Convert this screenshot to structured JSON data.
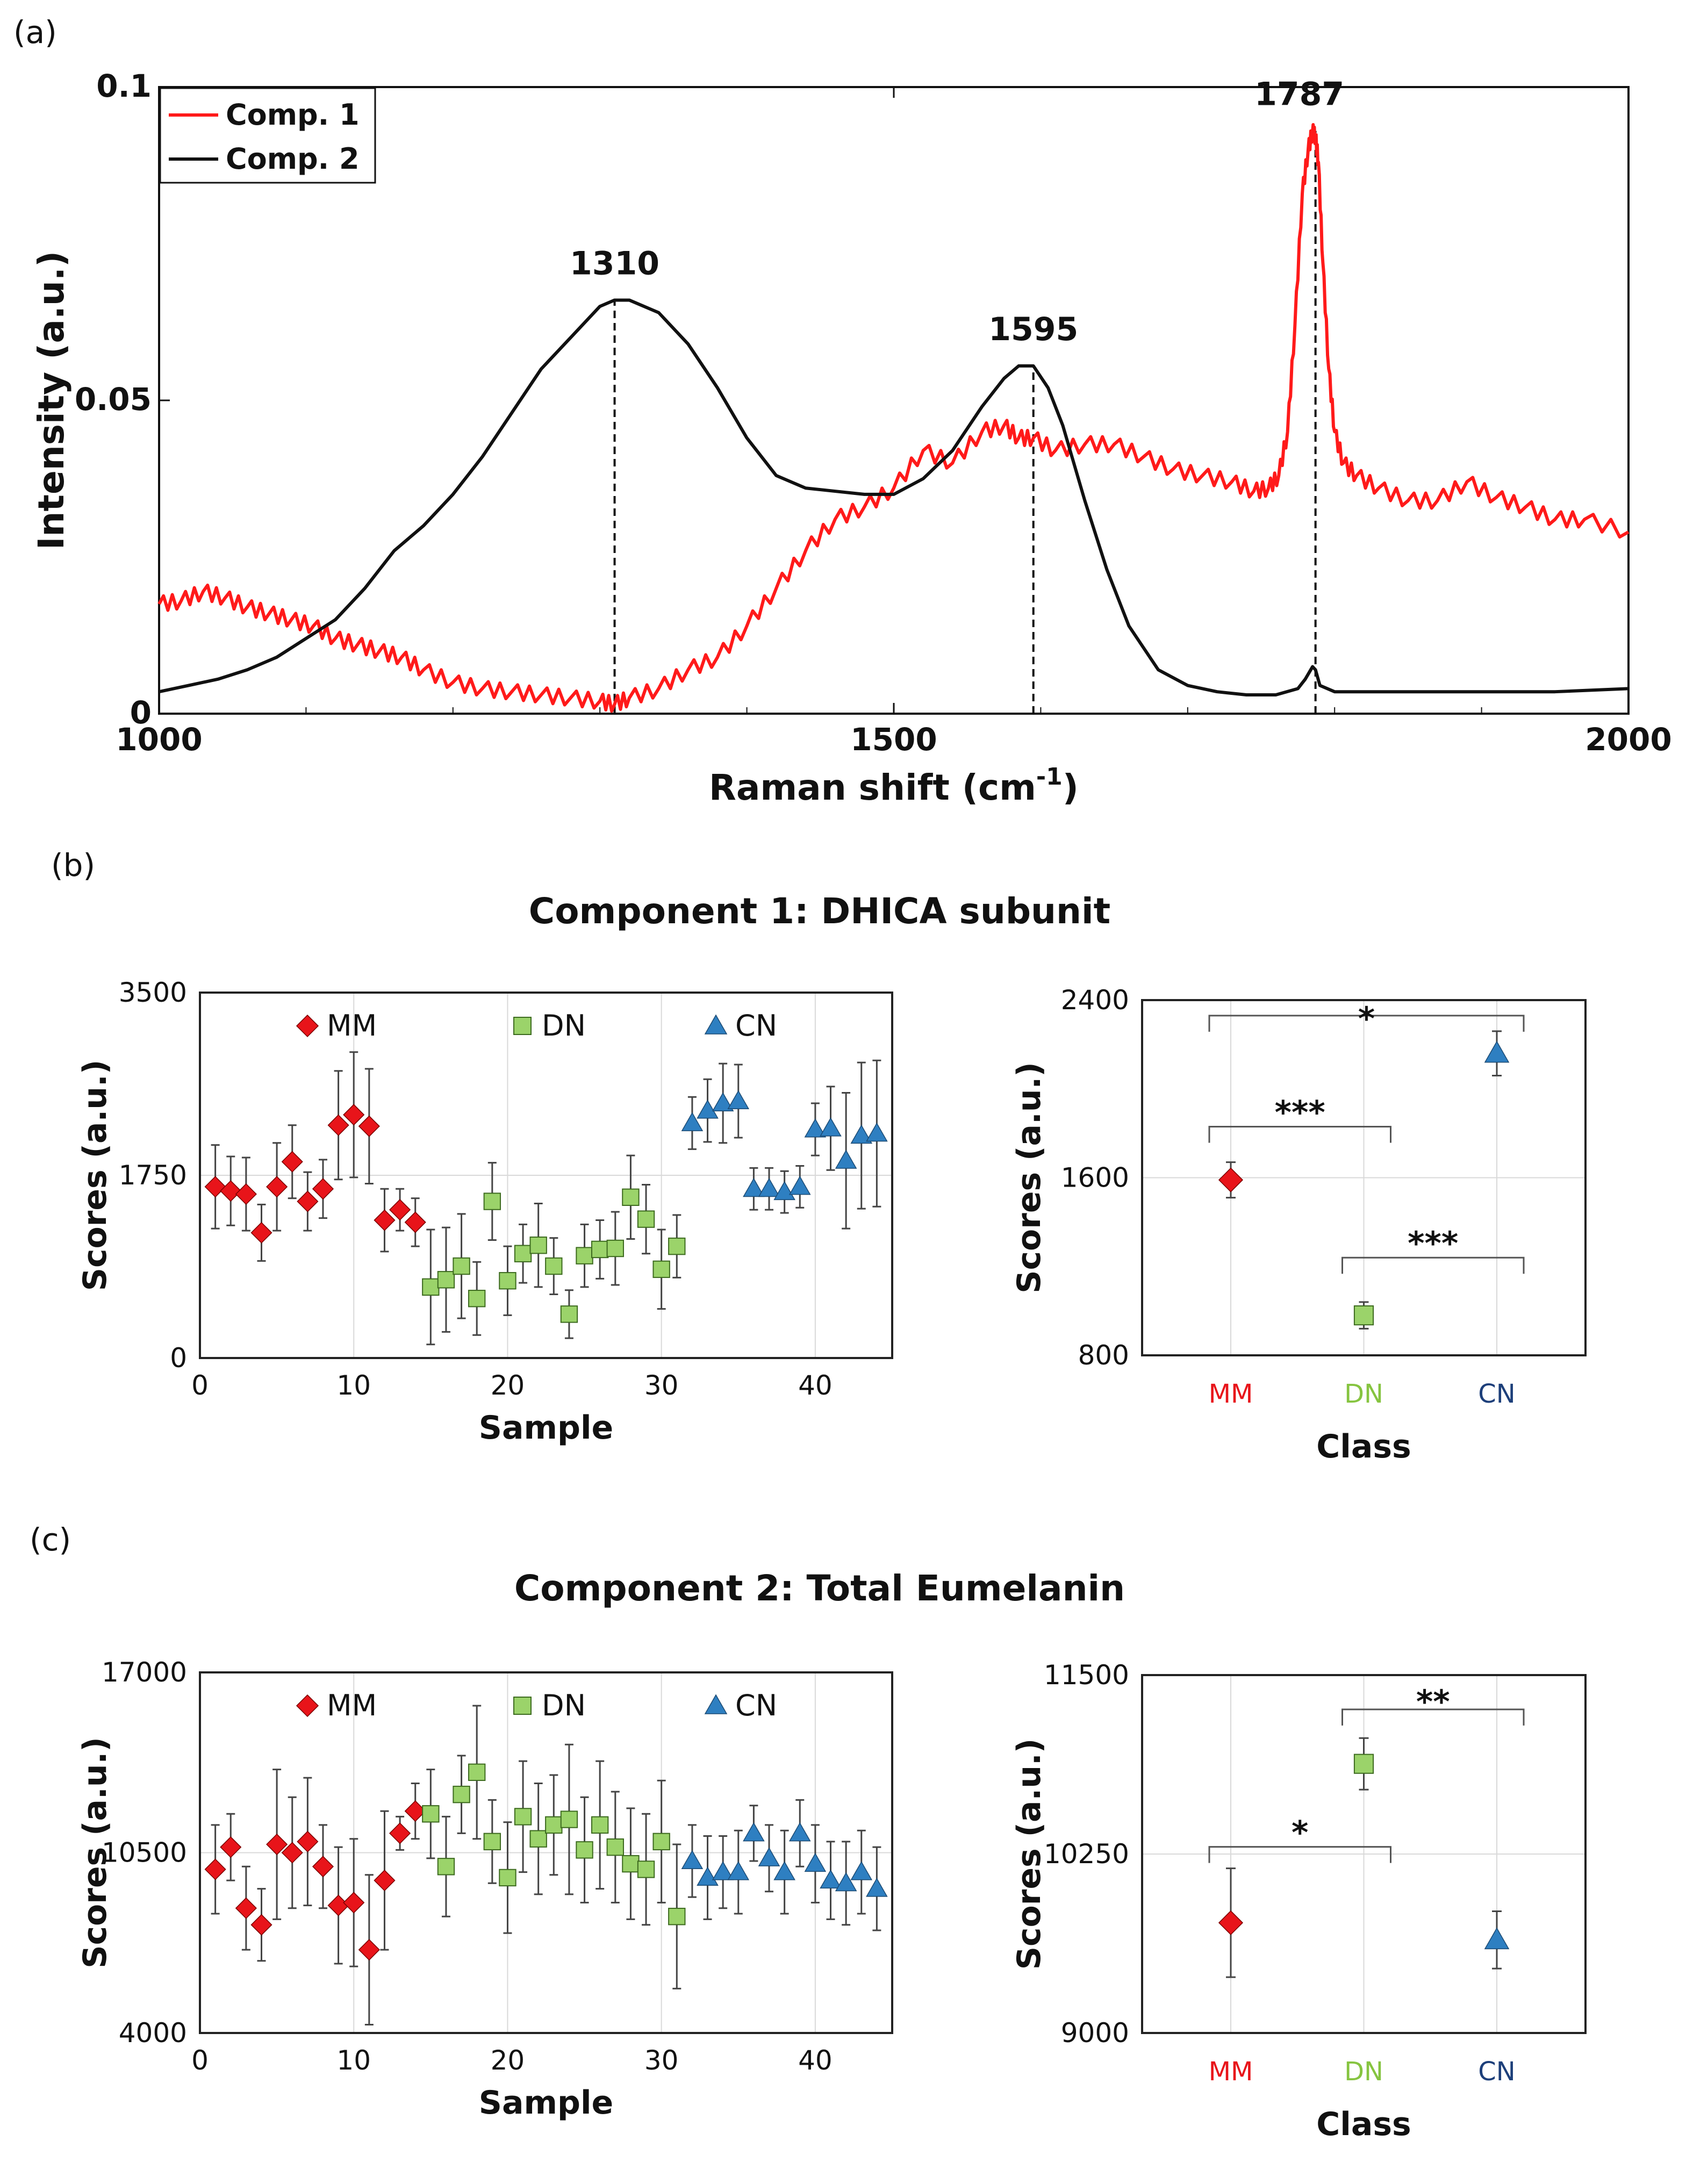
{
  "panel_labels": {
    "a": "(a)",
    "b": "(b)",
    "c": "(c)"
  },
  "section_titles": {
    "b": "Component 1: DHICA subunit",
    "c": "Component 2: Total Eumelanin"
  },
  "colors": {
    "comp1": "#ff1a1a",
    "comp2": "#111111",
    "MM": "#e8141a",
    "DN": "#9bd36a",
    "CN": "#2e7fc1",
    "MM_label": "#e8141a",
    "DN_label": "#86c440",
    "CN_label": "#1d3f7a",
    "grid": "#d9d9d9"
  },
  "chart_data": [
    {
      "id": "a",
      "type": "line",
      "xlabel": "Raman shift (cm",
      "xlabel_sup": "-1",
      "xlabel_end": ")",
      "ylabel": "Intensity (a.u.)",
      "xlim": [
        1000,
        2000
      ],
      "ylim": [
        0,
        0.1
      ],
      "xticks": [
        1000,
        1500,
        2000
      ],
      "xtick_labels": [
        "1000",
        "1500",
        "2000"
      ],
      "yticks": [
        0,
        0.05,
        0.1
      ],
      "ytick_labels": [
        "0",
        "0.05",
        "0.1"
      ],
      "legend": [
        "Comp. 1",
        "Comp. 2"
      ],
      "series": [
        {
          "name": "Comp. 1",
          "color": "#ff1a1a",
          "x": [
            1000,
            1015,
            1030,
            1045,
            1060,
            1075,
            1090,
            1105,
            1120,
            1135,
            1150,
            1165,
            1180,
            1200,
            1220,
            1240,
            1260,
            1280,
            1300,
            1310,
            1320,
            1340,
            1360,
            1380,
            1400,
            1420,
            1440,
            1460,
            1480,
            1500,
            1520,
            1540,
            1560,
            1575,
            1585,
            1595,
            1610,
            1630,
            1650,
            1670,
            1690,
            1710,
            1730,
            1745,
            1755,
            1762,
            1768,
            1773,
            1778,
            1782,
            1785,
            1787,
            1789,
            1792,
            1796,
            1800,
            1806,
            1815,
            1830,
            1850,
            1870,
            1890,
            1910,
            1930,
            1950,
            1970,
            2000
          ],
          "y": [
            0.0175,
            0.018,
            0.0195,
            0.0185,
            0.017,
            0.016,
            0.015,
            0.014,
            0.012,
            0.011,
            0.01,
            0.009,
            0.007,
            0.005,
            0.004,
            0.0035,
            0.003,
            0.0025,
            0.002,
            0.0015,
            0.0025,
            0.004,
            0.007,
            0.009,
            0.014,
            0.02,
            0.026,
            0.031,
            0.033,
            0.036,
            0.042,
            0.04,
            0.045,
            0.046,
            0.044,
            0.044,
            0.042,
            0.043,
            0.043,
            0.041,
            0.039,
            0.038,
            0.037,
            0.0355,
            0.036,
            0.038,
            0.045,
            0.062,
            0.083,
            0.09,
            0.093,
            0.092,
            0.088,
            0.072,
            0.055,
            0.045,
            0.04,
            0.038,
            0.036,
            0.034,
            0.034,
            0.037,
            0.0345,
            0.033,
            0.031,
            0.031,
            0.029
          ]
        },
        {
          "name": "Comp. 2",
          "color": "#111111",
          "x": [
            1000,
            1020,
            1040,
            1060,
            1080,
            1100,
            1120,
            1140,
            1160,
            1180,
            1200,
            1220,
            1240,
            1260,
            1280,
            1300,
            1310,
            1320,
            1340,
            1360,
            1380,
            1400,
            1420,
            1440,
            1460,
            1480,
            1500,
            1520,
            1540,
            1560,
            1575,
            1585,
            1595,
            1605,
            1615,
            1630,
            1645,
            1660,
            1680,
            1700,
            1720,
            1740,
            1760,
            1775,
            1780,
            1785,
            1787,
            1790,
            1800,
            1850,
            1900,
            1950,
            2000
          ],
          "y": [
            0.0035,
            0.0045,
            0.0055,
            0.007,
            0.009,
            0.012,
            0.015,
            0.02,
            0.026,
            0.03,
            0.035,
            0.041,
            0.048,
            0.055,
            0.06,
            0.065,
            0.066,
            0.066,
            0.064,
            0.059,
            0.052,
            0.044,
            0.038,
            0.036,
            0.0355,
            0.035,
            0.035,
            0.0375,
            0.042,
            0.049,
            0.0535,
            0.0555,
            0.0555,
            0.052,
            0.046,
            0.034,
            0.023,
            0.014,
            0.007,
            0.0045,
            0.0035,
            0.003,
            0.003,
            0.004,
            0.0055,
            0.0075,
            0.007,
            0.0045,
            0.0035,
            0.0035,
            0.0035,
            0.0035,
            0.004
          ]
        }
      ],
      "peaks": [
        {
          "x": 1310,
          "y": 0.066,
          "label": "1310"
        },
        {
          "x": 1595,
          "y": 0.0555,
          "label": "1595"
        },
        {
          "x": 1787,
          "y": 0.093,
          "label": "1787"
        }
      ]
    },
    {
      "id": "b-left",
      "type": "scatter",
      "xlabel": "Sample",
      "ylabel": "Scores (a.u.)",
      "xlim": [
        0,
        45
      ],
      "ylim": [
        0,
        3500
      ],
      "xticks": [
        0,
        10,
        20,
        30,
        40
      ],
      "xtick_labels": [
        "0",
        "10",
        "20",
        "30",
        "40"
      ],
      "yticks": [
        0,
        1750,
        3500
      ],
      "ytick_labels": [
        "0",
        "1750",
        "3500"
      ],
      "legend": [
        "MM",
        "DN",
        "CN"
      ],
      "series": [
        {
          "name": "MM",
          "marker": "diamond",
          "color": "#e8141a",
          "x": [
            1,
            2,
            3,
            4,
            5,
            6,
            7,
            8,
            9,
            10,
            11,
            12,
            13,
            14
          ],
          "y": [
            1640,
            1600,
            1570,
            1200,
            1640,
            1880,
            1500,
            1620,
            2230,
            2330,
            2220,
            1320,
            1420,
            1300
          ],
          "err": [
            400,
            330,
            350,
            270,
            420,
            350,
            280,
            280,
            520,
            600,
            550,
            300,
            200,
            230
          ]
        },
        {
          "name": "DN",
          "marker": "square",
          "color": "#9bd36a",
          "x": [
            15,
            16,
            17,
            18,
            19,
            20,
            21,
            22,
            23,
            24,
            25,
            26,
            27,
            28,
            29,
            30,
            31
          ],
          "y": [
            680,
            750,
            880,
            570,
            1500,
            740,
            1000,
            1080,
            880,
            420,
            980,
            1040,
            1050,
            1540,
            1330,
            850,
            1070
          ],
          "err": [
            550,
            500,
            500,
            350,
            370,
            330,
            280,
            400,
            270,
            230,
            300,
            280,
            350,
            400,
            330,
            380,
            300
          ]
        },
        {
          "name": "CN",
          "marker": "triangle",
          "color": "#2e7fc1",
          "x": [
            32,
            33,
            34,
            35,
            36,
            37,
            38,
            39,
            40,
            41,
            42,
            43,
            44
          ],
          "y": [
            2250,
            2370,
            2440,
            2460,
            1620,
            1620,
            1590,
            1640,
            2190,
            2200,
            1890,
            2130,
            2150
          ],
          "err": [
            250,
            300,
            380,
            350,
            200,
            200,
            200,
            200,
            250,
            400,
            650,
            700,
            700
          ]
        }
      ]
    },
    {
      "id": "b-right",
      "type": "scatter",
      "xlabel": "Class",
      "ylabel": "Scores (a.u.)",
      "ylim": [
        800,
        2400
      ],
      "yticks": [
        800,
        1600,
        2400
      ],
      "ytick_labels": [
        "800",
        "1600",
        "2400"
      ],
      "categories": [
        "MM",
        "DN",
        "CN"
      ],
      "values": [
        1590,
        980,
        2160
      ],
      "err": [
        80,
        60,
        100
      ],
      "markers": [
        "diamond",
        "square",
        "triangle"
      ],
      "significance": [
        {
          "from": "MM",
          "to": "CN",
          "y": 2330,
          "label": "*"
        },
        {
          "from": "MM",
          "to": "DN",
          "y": 1830,
          "label": "***"
        },
        {
          "from": "DN",
          "to": "CN",
          "y": 1240,
          "label": "***"
        }
      ]
    },
    {
      "id": "c-left",
      "type": "scatter",
      "xlabel": "Sample",
      "ylabel": "Scores (a.u.)",
      "xlim": [
        0,
        45
      ],
      "ylim": [
        4000,
        17000
      ],
      "xticks": [
        0,
        10,
        20,
        30,
        40
      ],
      "xtick_labels": [
        "0",
        "10",
        "20",
        "30",
        "40"
      ],
      "yticks": [
        4000,
        10500,
        17000
      ],
      "ytick_labels": [
        "4000",
        "10500",
        "17000"
      ],
      "legend": [
        "MM",
        "DN",
        "CN"
      ],
      "series": [
        {
          "name": "MM",
          "marker": "diamond",
          "color": "#e8141a",
          "x": [
            1,
            2,
            3,
            4,
            5,
            6,
            7,
            8,
            9,
            10,
            11,
            12,
            13,
            14
          ],
          "y": [
            9900,
            10700,
            8500,
            7900,
            10800,
            10500,
            10900,
            10000,
            8600,
            8700,
            7000,
            9500,
            11200,
            12000
          ],
          "err": [
            1600,
            1200,
            1500,
            1300,
            2700,
            2000,
            2300,
            1500,
            2100,
            2300,
            2700,
            2500,
            600,
            1000
          ]
        },
        {
          "name": "DN",
          "marker": "square",
          "color": "#9bd36a",
          "x": [
            15,
            16,
            17,
            18,
            19,
            20,
            21,
            22,
            23,
            24,
            25,
            26,
            27,
            28,
            29,
            30,
            31
          ],
          "y": [
            11900,
            10000,
            12600,
            13400,
            10900,
            9600,
            11800,
            11000,
            11500,
            11700,
            10600,
            11500,
            10700,
            10100,
            9900,
            10900,
            8200
          ],
          "err": [
            1600,
            1800,
            1400,
            2400,
            1500,
            2000,
            2000,
            2000,
            1800,
            2700,
            1900,
            2300,
            2000,
            2000,
            2000,
            2200,
            2600
          ]
        },
        {
          "name": "CN",
          "marker": "triangle",
          "color": "#2e7fc1",
          "x": [
            32,
            33,
            34,
            35,
            36,
            37,
            38,
            39,
            40,
            41,
            42,
            43,
            44
          ],
          "y": [
            10200,
            9600,
            9800,
            9800,
            11200,
            10300,
            9800,
            11200,
            10100,
            9500,
            9400,
            9800,
            9200
          ],
          "err": [
            1300,
            1500,
            1300,
            1500,
            1000,
            1200,
            1500,
            1200,
            1400,
            1400,
            1500,
            1500,
            1500
          ]
        }
      ]
    },
    {
      "id": "c-right",
      "type": "scatter",
      "xlabel": "Class",
      "ylabel": "Scores (a.u.)",
      "ylim": [
        9000,
        11500
      ],
      "yticks": [
        9000,
        10250,
        11500
      ],
      "ytick_labels": [
        "9000",
        "10250",
        "11500"
      ],
      "categories": [
        "MM",
        "DN",
        "CN"
      ],
      "values": [
        9770,
        10880,
        9650
      ],
      "err": [
        380,
        180,
        200
      ],
      "markers": [
        "diamond",
        "square",
        "triangle"
      ],
      "significance": [
        {
          "from": "MM",
          "to": "DN",
          "y": 10300,
          "label": "*"
        },
        {
          "from": "DN",
          "to": "CN",
          "y": 11260,
          "label": "**"
        }
      ]
    }
  ]
}
